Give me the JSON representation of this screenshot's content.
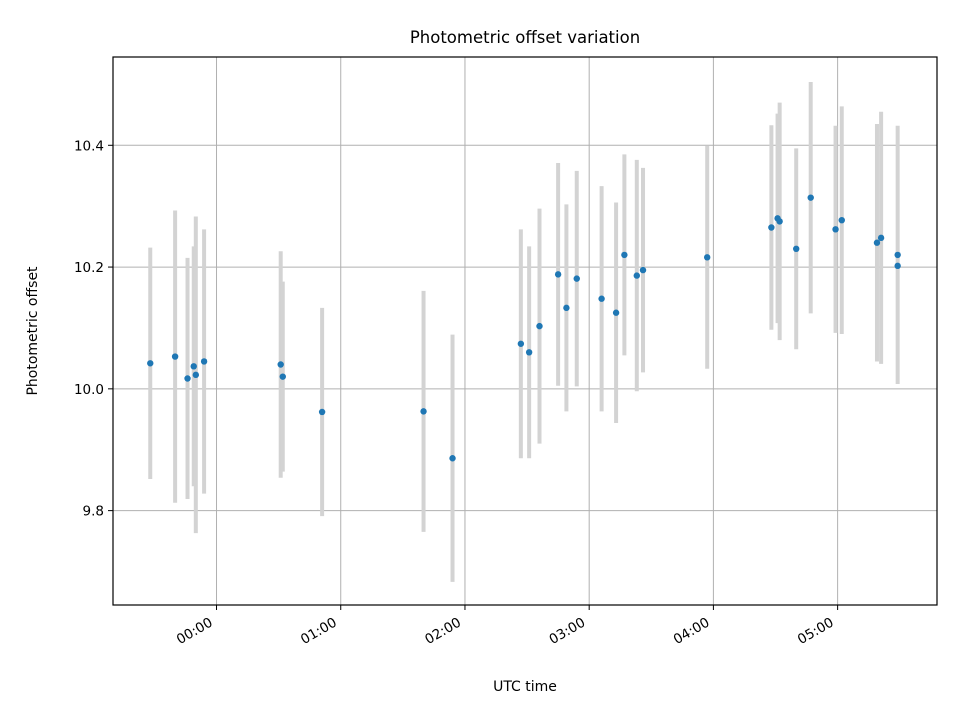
{
  "chart_data": {
    "type": "scatter",
    "title": "Photometric offset variation",
    "xlabel": "UTC time",
    "ylabel": "Photometric offset",
    "x_is_time": true,
    "xlim": [
      "23:10",
      "05:48"
    ],
    "ylim": [
      9.645,
      10.545
    ],
    "xticks": [
      "00:00",
      "01:00",
      "02:00",
      "03:00",
      "04:00",
      "05:00"
    ],
    "yticks": [
      9.8,
      10.0,
      10.2,
      10.4
    ],
    "grid": true,
    "colors": {
      "point": "#1f77b4",
      "errorbar": "#d3d3d3",
      "grid": "#b0b0b0"
    },
    "points": [
      {
        "x": "23:28",
        "y": 10.042,
        "err": 0.19
      },
      {
        "x": "23:40",
        "y": 10.053,
        "err": 0.24
      },
      {
        "x": "23:46",
        "y": 10.017,
        "err": 0.198
      },
      {
        "x": "23:49",
        "y": 10.037,
        "err": 0.197
      },
      {
        "x": "23:50",
        "y": 10.023,
        "err": 0.26
      },
      {
        "x": "23:54",
        "y": 10.045,
        "err": 0.217
      },
      {
        "x": "00:31",
        "y": 10.04,
        "err": 0.186
      },
      {
        "x": "00:32",
        "y": 10.02,
        "err": 0.156
      },
      {
        "x": "00:51",
        "y": 9.962,
        "err": 0.171
      },
      {
        "x": "01:40",
        "y": 9.963,
        "err": 0.198
      },
      {
        "x": "01:54",
        "y": 9.886,
        "err": 0.203
      },
      {
        "x": "02:27",
        "y": 10.074,
        "err": 0.188
      },
      {
        "x": "02:31",
        "y": 10.06,
        "err": 0.174
      },
      {
        "x": "02:36",
        "y": 10.103,
        "err": 0.193
      },
      {
        "x": "02:45",
        "y": 10.188,
        "err": 0.183
      },
      {
        "x": "02:49",
        "y": 10.133,
        "err": 0.17
      },
      {
        "x": "02:54",
        "y": 10.181,
        "err": 0.177
      },
      {
        "x": "03:06",
        "y": 10.148,
        "err": 0.185
      },
      {
        "x": "03:13",
        "y": 10.125,
        "err": 0.181
      },
      {
        "x": "03:17",
        "y": 10.22,
        "err": 0.165
      },
      {
        "x": "03:23",
        "y": 10.186,
        "err": 0.19
      },
      {
        "x": "03:26",
        "y": 10.195,
        "err": 0.168
      },
      {
        "x": "03:57",
        "y": 10.216,
        "err": 0.183
      },
      {
        "x": "04:28",
        "y": 10.265,
        "err": 0.168
      },
      {
        "x": "04:31",
        "y": 10.28,
        "err": 0.172
      },
      {
        "x": "04:32",
        "y": 10.275,
        "err": 0.195
      },
      {
        "x": "04:40",
        "y": 10.23,
        "err": 0.165
      },
      {
        "x": "04:47",
        "y": 10.314,
        "err": 0.19
      },
      {
        "x": "04:59",
        "y": 10.262,
        "err": 0.17
      },
      {
        "x": "05:02",
        "y": 10.277,
        "err": 0.187
      },
      {
        "x": "05:19",
        "y": 10.24,
        "err": 0.195
      },
      {
        "x": "05:21",
        "y": 10.248,
        "err": 0.207
      },
      {
        "x": "05:29",
        "y": 10.22,
        "err": 0.212
      },
      {
        "x": "05:29",
        "y": 10.202,
        "err": 0.0
      }
    ]
  }
}
